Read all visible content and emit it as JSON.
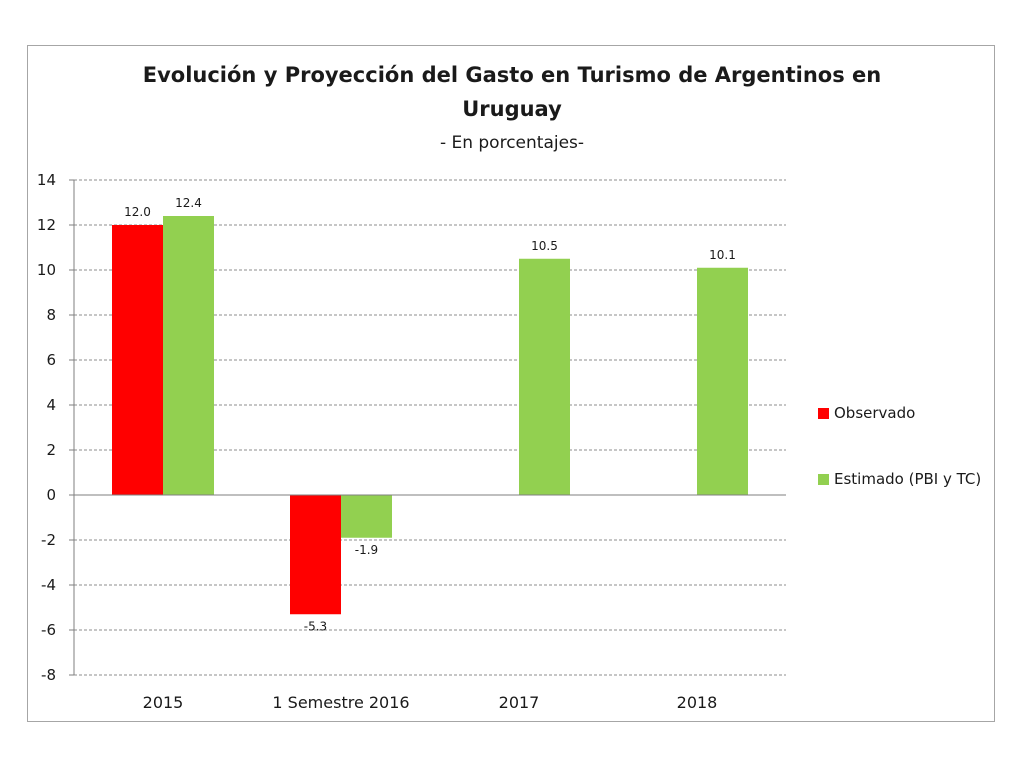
{
  "chart_data": {
    "type": "bar",
    "title_line1": "Evolución y Proyección del Gasto en Turismo de Argentinos en",
    "title_line2": "Uruguay",
    "subtitle": "- En porcentajes-",
    "categories": [
      "2015",
      "1 Semestre 2016",
      "2017",
      "2018"
    ],
    "series": [
      {
        "name": "Observado",
        "color": "#ff0000",
        "values": [
          12.0,
          -5.3,
          null,
          null
        ],
        "labels": [
          "12.0",
          "-5.3",
          "",
          ""
        ]
      },
      {
        "name": "Estimado (PBI y TC)",
        "color": "#92d050",
        "values": [
          12.4,
          -1.9,
          10.5,
          10.1
        ],
        "labels": [
          "12.4",
          "-1.9",
          "10.5",
          "10.1"
        ]
      }
    ],
    "ylim": [
      -8,
      14
    ],
    "yticks": [
      "14",
      "12",
      "10",
      "8",
      "6",
      "4",
      "2",
      "0",
      "-2",
      "-4",
      "-6",
      "-8"
    ],
    "grid": true,
    "legend_position": "right"
  }
}
